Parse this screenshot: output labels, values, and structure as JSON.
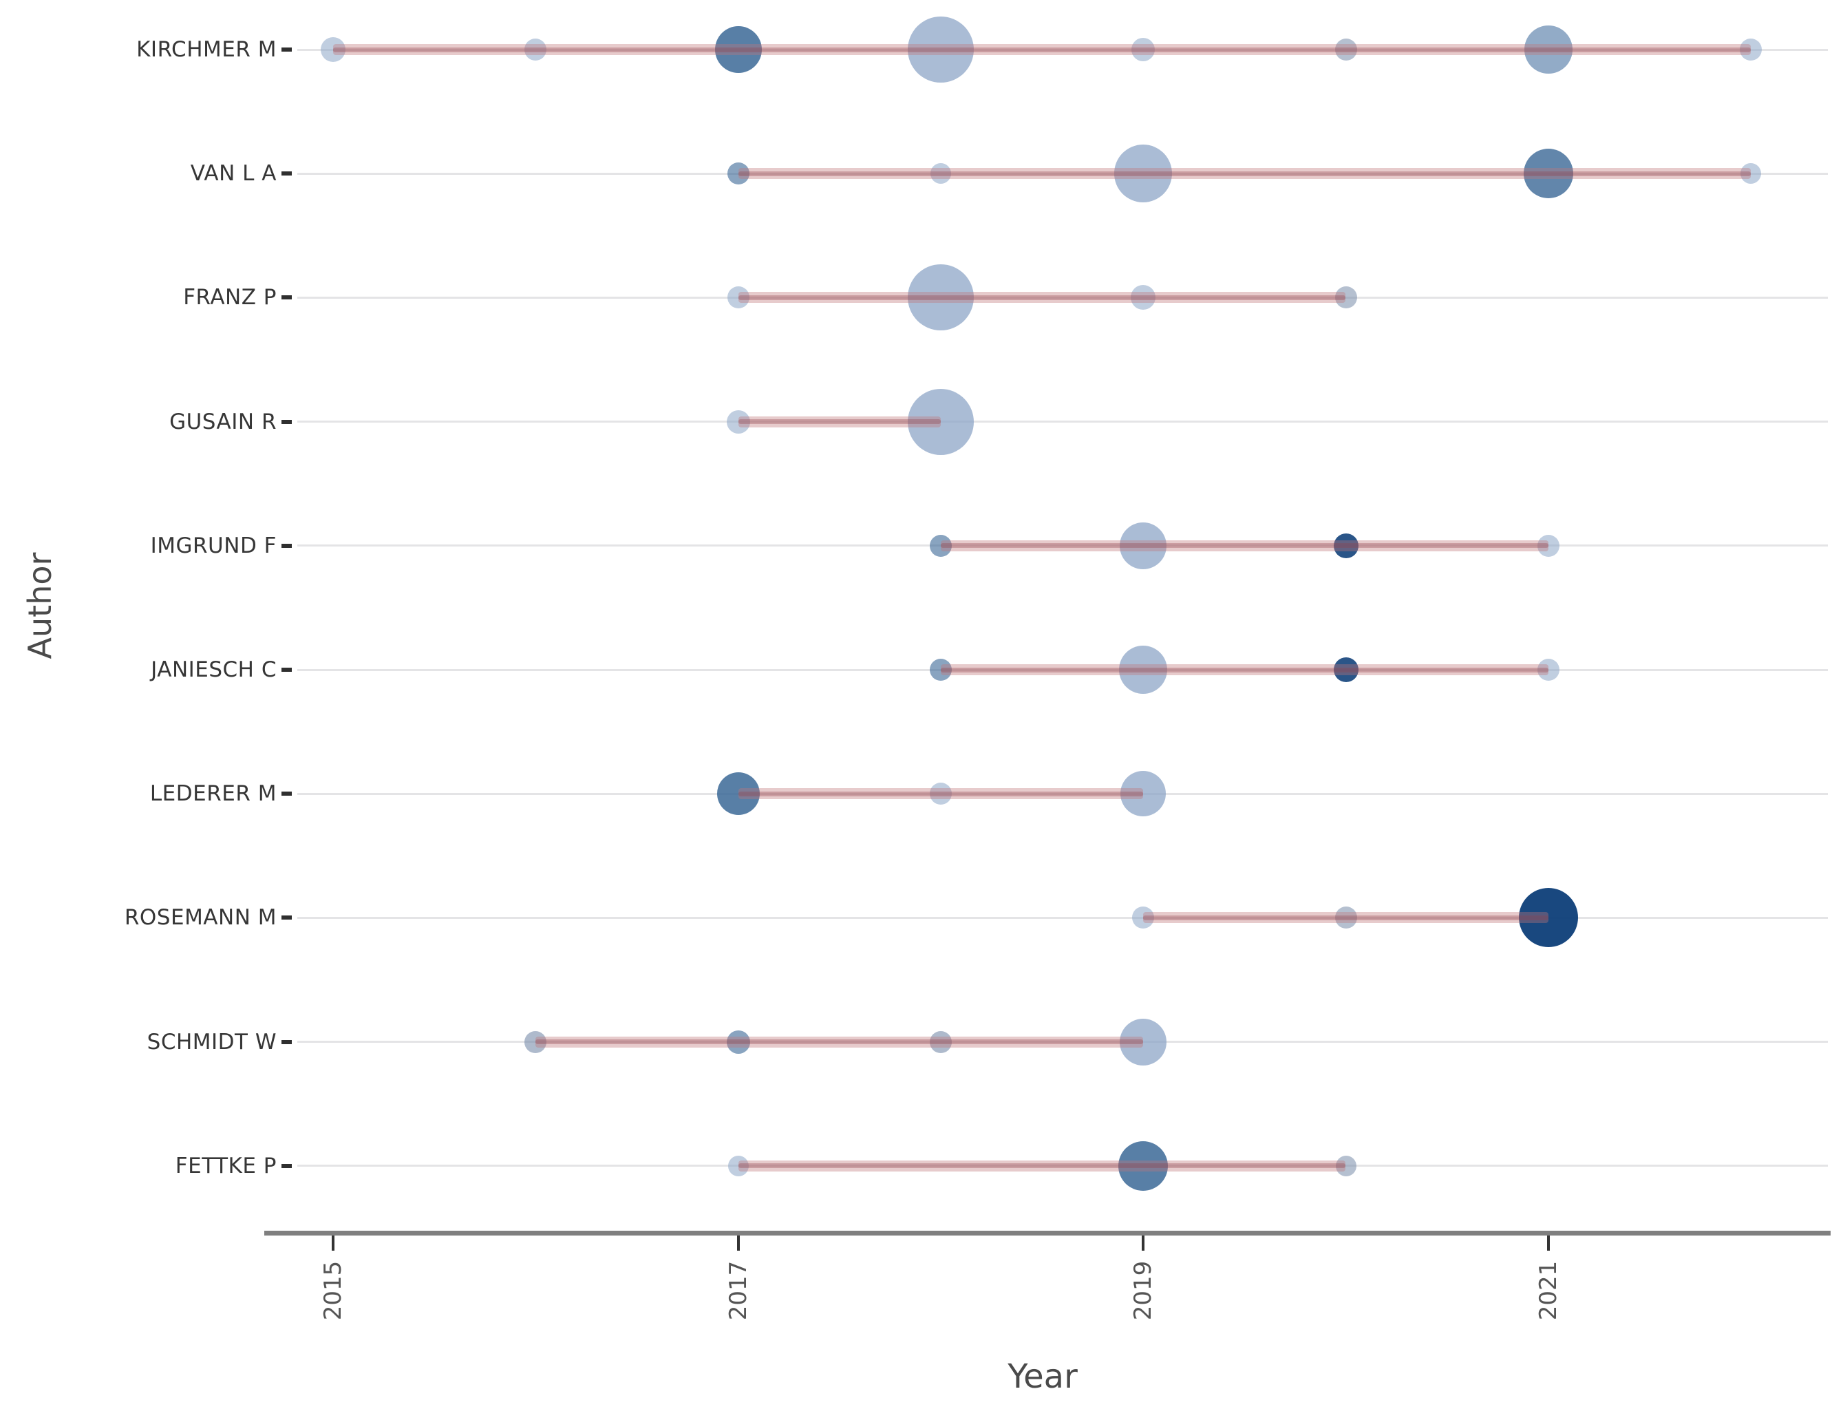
{
  "chart_data": {
    "type": "scatter",
    "subtype": "bubble-timeline",
    "xlabel": "Year",
    "ylabel": "Author",
    "x_tick_labels": [
      "2015",
      "2017",
      "2019",
      "2021"
    ],
    "x_tick_years": [
      2015,
      2017,
      2019,
      2021
    ],
    "x_domain": [
      2015,
      2022
    ],
    "grid": "horizontal-only",
    "legend": "none",
    "timeline_color": "#c17779",
    "bubble_palette": {
      "light": "#a8bdd8",
      "medium": "#567da6",
      "navy": "#1a4f87",
      "gray": "#9fafc6"
    },
    "authors": [
      {
        "author": "KIRCHMER M",
        "line_span": [
          2015,
          2022
        ],
        "points": [
          {
            "year": 2015,
            "r": 18,
            "color": "rgba(141,166,199,0.55)"
          },
          {
            "year": 2016,
            "r": 16,
            "color": "rgba(141,166,199,0.55)"
          },
          {
            "year": 2017,
            "r": 34,
            "color": "rgba(59,104,150,0.85)"
          },
          {
            "year": 2018,
            "r": 48,
            "color": "rgba(141,166,199,0.75)"
          },
          {
            "year": 2019,
            "r": 17,
            "color": "rgba(141,166,199,0.55)"
          },
          {
            "year": 2020,
            "r": 16,
            "color": "rgba(120,140,170,0.55)"
          },
          {
            "year": 2021,
            "r": 35,
            "color": "rgba(100,135,175,0.70)"
          },
          {
            "year": 2022,
            "r": 16,
            "color": "rgba(141,166,199,0.55)"
          }
        ]
      },
      {
        "author": "VAN L A",
        "line_span": [
          2017,
          2022
        ],
        "points": [
          {
            "year": 2017,
            "r": 16,
            "color": "rgba(59,104,150,0.60)"
          },
          {
            "year": 2018,
            "r": 15,
            "color": "rgba(141,166,199,0.55)"
          },
          {
            "year": 2019,
            "r": 42,
            "color": "rgba(141,166,199,0.75)"
          },
          {
            "year": 2021,
            "r": 36,
            "color": "rgba(59,104,150,0.80)"
          },
          {
            "year": 2022,
            "r": 15,
            "color": "rgba(141,166,199,0.55)"
          }
        ]
      },
      {
        "author": "FRANZ P",
        "line_span": [
          2017,
          2020
        ],
        "points": [
          {
            "year": 2017,
            "r": 16,
            "color": "rgba(141,166,199,0.55)"
          },
          {
            "year": 2018,
            "r": 48,
            "color": "rgba(141,166,199,0.75)"
          },
          {
            "year": 2019,
            "r": 18,
            "color": "rgba(141,166,199,0.55)"
          },
          {
            "year": 2020,
            "r": 16,
            "color": "rgba(120,140,170,0.55)"
          }
        ]
      },
      {
        "author": "GUSAIN R",
        "line_span": [
          2017,
          2018
        ],
        "points": [
          {
            "year": 2017,
            "r": 17,
            "color": "rgba(141,166,199,0.55)"
          },
          {
            "year": 2018,
            "r": 48,
            "color": "rgba(141,166,199,0.75)"
          }
        ]
      },
      {
        "author": "IMGRUND F",
        "line_span": [
          2018,
          2021
        ],
        "points": [
          {
            "year": 2018,
            "r": 16,
            "color": "rgba(59,104,150,0.60)"
          },
          {
            "year": 2019,
            "r": 34,
            "color": "rgba(141,166,199,0.75)"
          },
          {
            "year": 2020,
            "r": 18,
            "color": "rgba(13,62,120,0.88)"
          },
          {
            "year": 2021,
            "r": 16,
            "color": "rgba(141,166,199,0.55)"
          }
        ]
      },
      {
        "author": "JANIESCH C",
        "line_span": [
          2018,
          2021
        ],
        "points": [
          {
            "year": 2018,
            "r": 16,
            "color": "rgba(59,104,150,0.60)"
          },
          {
            "year": 2019,
            "r": 35,
            "color": "rgba(141,166,199,0.75)"
          },
          {
            "year": 2020,
            "r": 18,
            "color": "rgba(13,62,120,0.88)"
          },
          {
            "year": 2021,
            "r": 16,
            "color": "rgba(141,166,199,0.55)"
          }
        ]
      },
      {
        "author": "LEDERER M",
        "line_span": [
          2017,
          2019
        ],
        "points": [
          {
            "year": 2017,
            "r": 31,
            "color": "rgba(59,104,150,0.85)"
          },
          {
            "year": 2018,
            "r": 16,
            "color": "rgba(141,166,199,0.55)"
          },
          {
            "year": 2019,
            "r": 33,
            "color": "rgba(141,166,199,0.75)"
          }
        ]
      },
      {
        "author": "ROSEMANN M",
        "line_span": [
          2019,
          2021
        ],
        "points": [
          {
            "year": 2019,
            "r": 16,
            "color": "rgba(141,166,199,0.55)"
          },
          {
            "year": 2020,
            "r": 16,
            "color": "rgba(120,140,170,0.55)"
          },
          {
            "year": 2021,
            "r": 43,
            "color": "rgba(13,62,120,0.95)"
          }
        ]
      },
      {
        "author": "SCHMIDT W",
        "line_span": [
          2016,
          2019
        ],
        "points": [
          {
            "year": 2016,
            "r": 16,
            "color": "rgba(120,140,170,0.60)"
          },
          {
            "year": 2017,
            "r": 17,
            "color": "rgba(59,104,150,0.60)"
          },
          {
            "year": 2018,
            "r": 16,
            "color": "rgba(120,140,170,0.60)"
          },
          {
            "year": 2019,
            "r": 34,
            "color": "rgba(141,166,199,0.75)"
          }
        ]
      },
      {
        "author": "FETTKE P",
        "line_span": [
          2017,
          2020
        ],
        "points": [
          {
            "year": 2017,
            "r": 15,
            "color": "rgba(141,166,199,0.55)"
          },
          {
            "year": 2019,
            "r": 36,
            "color": "rgba(59,104,150,0.85)"
          },
          {
            "year": 2020,
            "r": 15,
            "color": "rgba(120,140,170,0.55)"
          }
        ]
      }
    ]
  }
}
